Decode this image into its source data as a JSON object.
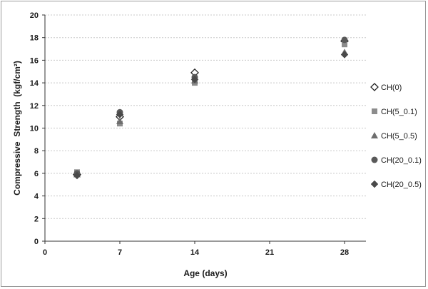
{
  "chart_data": {
    "type": "scatter",
    "xlabel": "Age (days)",
    "ylabel": "Compressive  Strength  (kgf/cm²)",
    "xlim": [
      0,
      30
    ],
    "ylim": [
      0,
      20
    ],
    "xticks": [
      0,
      7,
      14,
      21,
      28
    ],
    "yticks": [
      0,
      2,
      4,
      6,
      8,
      10,
      12,
      14,
      16,
      18,
      20
    ],
    "grid": "horizontal",
    "legend_position": "right",
    "series": [
      {
        "name": "CH(0)",
        "marker": "diamond-open",
        "color": "#222222",
        "x": [
          3,
          7,
          14,
          28
        ],
        "y": [
          5.9,
          11.0,
          14.9,
          17.7
        ]
      },
      {
        "name": "CH(5_0.1)",
        "marker": "square",
        "color": "#8c8c8c",
        "x": [
          3,
          7,
          14,
          28
        ],
        "y": [
          6.1,
          10.4,
          14.0,
          17.4
        ]
      },
      {
        "name": "CH(5_0.5)",
        "marker": "triangle",
        "color": "#6e6e6e",
        "x": [
          3,
          7,
          14,
          28
        ],
        "y": [
          5.9,
          10.6,
          14.2,
          16.7
        ]
      },
      {
        "name": "CH(20_0.1)",
        "marker": "circle",
        "color": "#595959",
        "x": [
          3,
          7,
          14,
          28
        ],
        "y": [
          6.0,
          11.4,
          14.5,
          17.8
        ]
      },
      {
        "name": "CH(20_0.5)",
        "marker": "diamond",
        "color": "#4a4a4a",
        "x": [
          3,
          7,
          14,
          28
        ],
        "y": [
          5.8,
          11.2,
          14.3,
          16.5
        ]
      }
    ]
  }
}
